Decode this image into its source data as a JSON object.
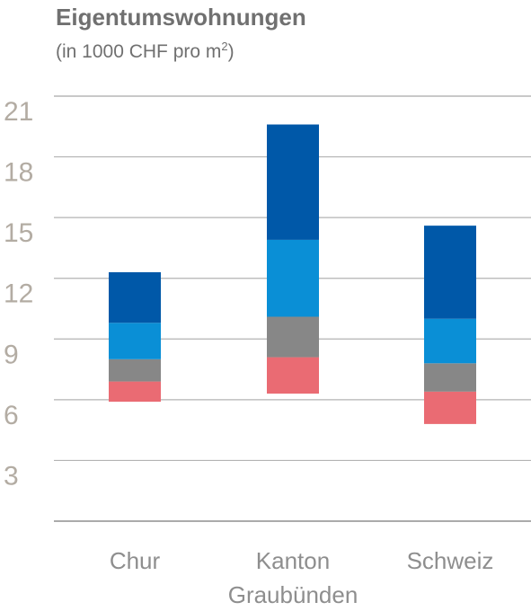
{
  "title": "Eigentumswohnungen",
  "subtitle_main": "(in 1000 CHF pro m",
  "subtitle_sup": "2",
  "subtitle_end": ")",
  "chart_data": {
    "type": "bar",
    "stacked": true,
    "title": "Eigentumswohnungen",
    "subtitle": "(in 1000 CHF pro m2)",
    "categories": [
      {
        "label": "Chur",
        "lines": [
          "Chur"
        ]
      },
      {
        "label": "Kanton Graubünden",
        "lines": [
          "Kanton",
          "Graubünden"
        ]
      },
      {
        "label": "Schweiz",
        "lines": [
          "Schweiz"
        ]
      }
    ],
    "yticks": [
      3,
      6,
      9,
      12,
      15,
      18,
      21
    ],
    "ylim": [
      0,
      21
    ],
    "grid": true,
    "series": [
      {
        "color": "#ea6b73",
        "ranges": [
          [
            5.9,
            6.9
          ],
          [
            6.3,
            8.1
          ],
          [
            4.8,
            6.4
          ]
        ]
      },
      {
        "color": "#878787",
        "ranges": [
          [
            6.9,
            8.0
          ],
          [
            8.1,
            10.1
          ],
          [
            6.4,
            7.8
          ]
        ]
      },
      {
        "color": "#0a8fd6",
        "ranges": [
          [
            8.0,
            9.8
          ],
          [
            10.1,
            13.9
          ],
          [
            7.8,
            10.0
          ]
        ]
      },
      {
        "color": "#0058a8",
        "ranges": [
          [
            9.8,
            12.3
          ],
          [
            13.9,
            19.6
          ],
          [
            10.0,
            14.6
          ]
        ]
      }
    ]
  }
}
